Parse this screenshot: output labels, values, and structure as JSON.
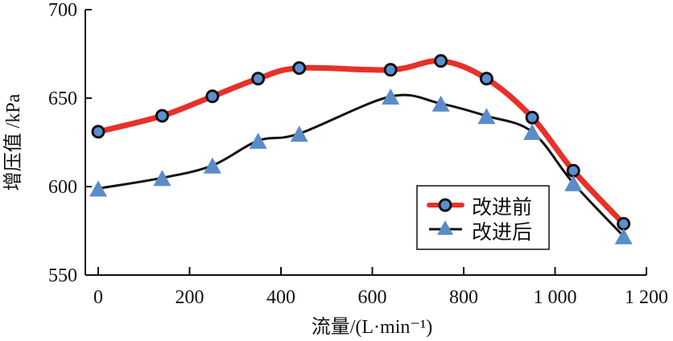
{
  "chart_data": {
    "type": "line",
    "title": "",
    "xlabel": "流量/(L·min⁻¹)",
    "ylabel": "增压值 /kPa",
    "xlim": [
      0,
      1200
    ],
    "ylim": [
      550,
      700
    ],
    "xticks": [
      0,
      200,
      400,
      600,
      800,
      1000,
      1200
    ],
    "xtick_labels": [
      "0",
      "200",
      "400",
      "600",
      "800",
      "1 000",
      "1 200"
    ],
    "yticks": [
      550,
      600,
      650,
      700
    ],
    "ytick_labels": [
      "550",
      "600",
      "650",
      "700"
    ],
    "grid": false,
    "legend_position": "lower-right",
    "series": [
      {
        "name": "改进前",
        "color": "#e8302a",
        "marker": "circle",
        "marker_color": "#5b8fd0",
        "x": [
          0,
          140,
          250,
          350,
          440,
          640,
          750,
          850,
          950,
          1040,
          1150
        ],
        "y": [
          631,
          640,
          651,
          661,
          667,
          666,
          671,
          661,
          639,
          609,
          579
        ]
      },
      {
        "name": "改进后",
        "color": "#111111",
        "marker": "triangle",
        "marker_color": "#5b8cc8",
        "x": [
          0,
          140,
          250,
          350,
          440,
          640,
          750,
          850,
          950,
          1040,
          1150
        ],
        "y": [
          598,
          604,
          611,
          625,
          629,
          650,
          646,
          639,
          630,
          601,
          571
        ]
      }
    ]
  }
}
